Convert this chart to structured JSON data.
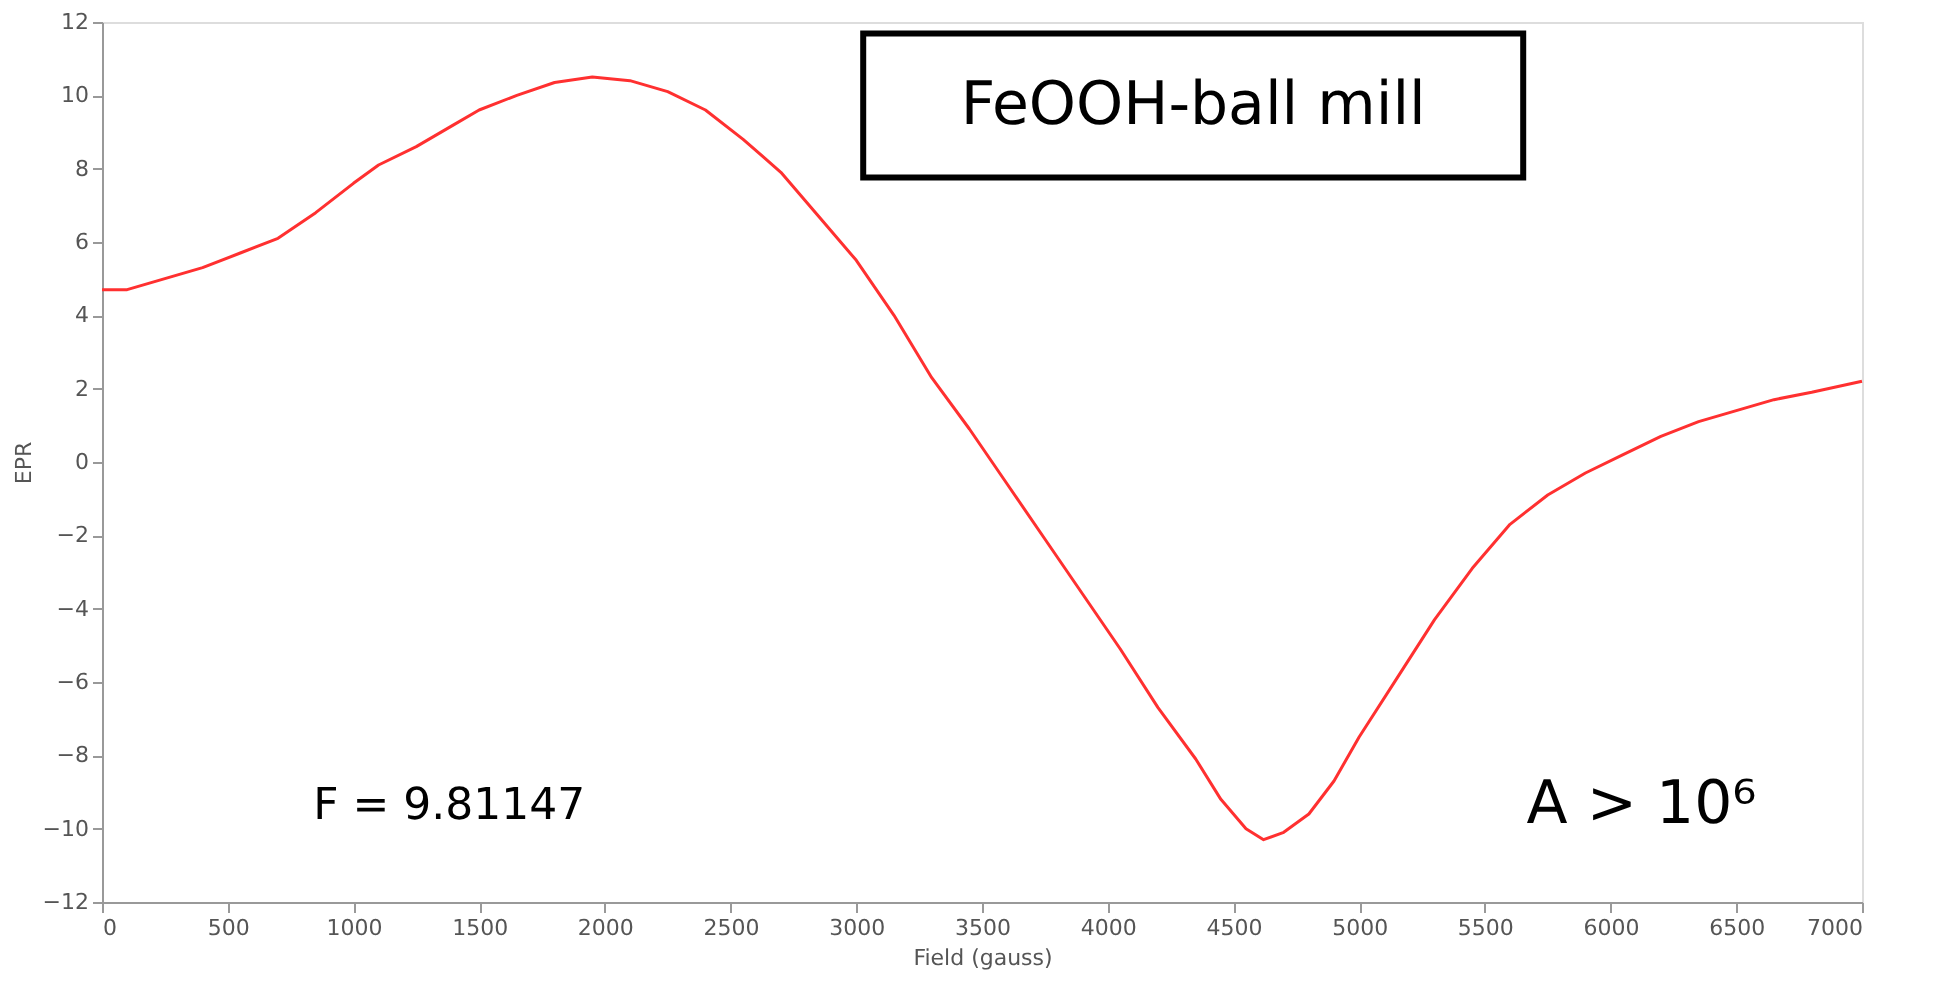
{
  "chart_data": {
    "type": "line",
    "xlabel": "Field (gauss)",
    "ylabel": "EPR",
    "annotations": [
      "FeOOH-ball mill",
      "F = 9.81147",
      "A > 10⁶"
    ],
    "x": [
      0,
      100,
      250,
      400,
      550,
      700,
      850,
      1000,
      1100,
      1250,
      1400,
      1500,
      1650,
      1800,
      1950,
      2100,
      2250,
      2400,
      2550,
      2700,
      2850,
      3000,
      3150,
      3300,
      3450,
      3600,
      3750,
      3900,
      4050,
      4200,
      4350,
      4450,
      4550,
      4620,
      4700,
      4800,
      4900,
      5000,
      5150,
      5300,
      5450,
      5600,
      5750,
      5900,
      6050,
      6200,
      6350,
      6500,
      6650,
      6800,
      7000
    ],
    "series": [
      {
        "color": "#ff3030",
        "values": [
          4.7,
          4.7,
          5.0,
          5.3,
          5.7,
          6.1,
          6.8,
          7.6,
          8.1,
          8.6,
          9.2,
          9.6,
          10.0,
          10.35,
          10.5,
          10.4,
          10.1,
          9.6,
          8.8,
          7.9,
          6.7,
          5.5,
          4.0,
          2.3,
          0.9,
          -0.6,
          -2.1,
          -3.6,
          -5.1,
          -6.7,
          -8.1,
          -9.2,
          -10.0,
          -10.3,
          -10.1,
          -9.6,
          -8.7,
          -7.5,
          -5.9,
          -4.3,
          -2.9,
          -1.7,
          -0.9,
          -0.3,
          0.2,
          0.7,
          1.1,
          1.4,
          1.7,
          1.9,
          2.2
        ]
      }
    ],
    "xlim": [
      0,
      7000
    ],
    "xticks": [
      0,
      500,
      1000,
      1500,
      2000,
      2500,
      3000,
      3500,
      4000,
      4500,
      5000,
      5500,
      6000,
      6500,
      7000
    ],
    "ylim": [
      -12,
      12
    ],
    "yticks": [
      -12,
      -10,
      -8,
      -6,
      -4,
      -2,
      0,
      2,
      4,
      6,
      8,
      10,
      12
    ],
    "grid": false,
    "marker": "none",
    "line_style": "solid"
  }
}
